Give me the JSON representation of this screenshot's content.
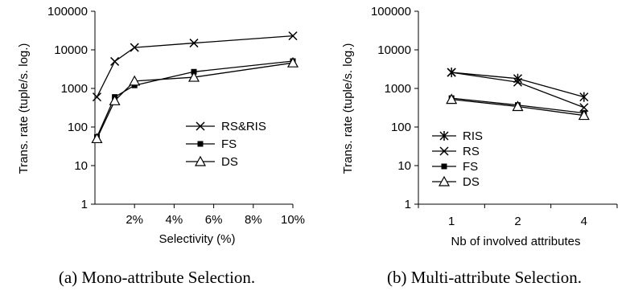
{
  "chart_data": [
    {
      "type": "line",
      "scale": "log",
      "ylabel": "Trans. rate (tuple/s. log.)",
      "xlabel": "Selectivity (%)",
      "caption": "(a) Mono-attribute Selection.",
      "xlim": [
        0,
        10
      ],
      "ylim": [
        1,
        100000
      ],
      "y_ticks": [
        {
          "v": 1,
          "label": "1"
        },
        {
          "v": 10,
          "label": "10"
        },
        {
          "v": 100,
          "label": "100"
        },
        {
          "v": 1000,
          "label": "1000"
        },
        {
          "v": 10000,
          "label": "10000"
        },
        {
          "v": 100000,
          "label": "100000"
        }
      ],
      "x_ticks": [
        {
          "v": 2,
          "label": "2%"
        },
        {
          "v": 4,
          "label": "4%"
        },
        {
          "v": 6,
          "label": "6%"
        },
        {
          "v": 8,
          "label": "8%"
        },
        {
          "v": 10,
          "label": "10%"
        }
      ],
      "legend_position": "right",
      "series": [
        {
          "name": "RS&RIS",
          "marker": "x",
          "points": [
            [
              0.1,
              600
            ],
            [
              1,
              5000
            ],
            [
              2,
              11500
            ],
            [
              5,
              15000
            ],
            [
              10,
              23000
            ]
          ]
        },
        {
          "name": "FS",
          "marker": "square",
          "points": [
            [
              0.1,
              55
            ],
            [
              1,
              600
            ],
            [
              2,
              1200
            ],
            [
              5,
              2700
            ],
            [
              10,
              5100
            ]
          ]
        },
        {
          "name": "DS",
          "marker": "triangle",
          "points": [
            [
              0.1,
              50
            ],
            [
              1,
              480
            ],
            [
              2,
              1550
            ],
            [
              5,
              1950
            ],
            [
              10,
              4600
            ]
          ]
        }
      ]
    },
    {
      "type": "line",
      "scale": "log",
      "ylabel": "Trans. rate (tuple/s. log.)",
      "xlabel": "Nb of involved attributes",
      "caption": "(b) Multi-attribute Selection.",
      "categories": [
        "1",
        "2",
        "4"
      ],
      "ylim": [
        1,
        100000
      ],
      "y_ticks": [
        {
          "v": 1,
          "label": "1"
        },
        {
          "v": 10,
          "label": "10"
        },
        {
          "v": 100,
          "label": "100"
        },
        {
          "v": 1000,
          "label": "1000"
        },
        {
          "v": 10000,
          "label": "10000"
        },
        {
          "v": 100000,
          "label": "100000"
        }
      ],
      "legend_position": "bottom-left",
      "series": [
        {
          "name": "RIS",
          "marker": "star",
          "values": [
            2600,
            1800,
            600
          ]
        },
        {
          "name": "RS",
          "marker": "x",
          "values": [
            2600,
            1450,
            320
          ]
        },
        {
          "name": "FS",
          "marker": "square",
          "values": [
            560,
            370,
            230
          ]
        },
        {
          "name": "DS",
          "marker": "triangle",
          "values": [
            520,
            340,
            200
          ]
        }
      ]
    }
  ]
}
